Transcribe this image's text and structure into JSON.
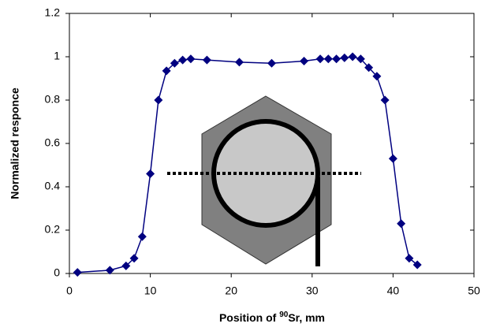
{
  "chart_data": {
    "type": "line",
    "x_label": [
      "Position of ",
      "90",
      "Sr, mm"
    ],
    "y_label": "Normalized responce",
    "x": [
      1,
      5,
      7,
      8,
      9,
      10,
      11,
      12,
      13,
      14,
      15,
      17,
      21,
      25,
      29,
      31,
      32,
      33,
      34,
      35,
      36,
      37,
      38,
      39,
      40,
      41,
      42,
      43
    ],
    "series": [
      {
        "color": "#000080",
        "values": [
          0.005,
          0.015,
          0.035,
          0.07,
          0.17,
          0.46,
          0.8,
          0.935,
          0.97,
          0.985,
          0.99,
          0.985,
          0.975,
          0.97,
          0.98,
          0.99,
          0.99,
          0.99,
          0.995,
          1.0,
          0.99,
          0.95,
          0.91,
          0.8,
          0.53,
          0.23,
          0.07,
          0.04
        ]
      }
    ],
    "xlim": [
      0,
      50
    ],
    "xticks": [
      0,
      10,
      20,
      30,
      40,
      50
    ],
    "ylim": [
      0,
      1.2
    ],
    "yticks": [
      0,
      0.2,
      0.4,
      0.6,
      0.8,
      1,
      1.2
    ],
    "grid": false
  }
}
